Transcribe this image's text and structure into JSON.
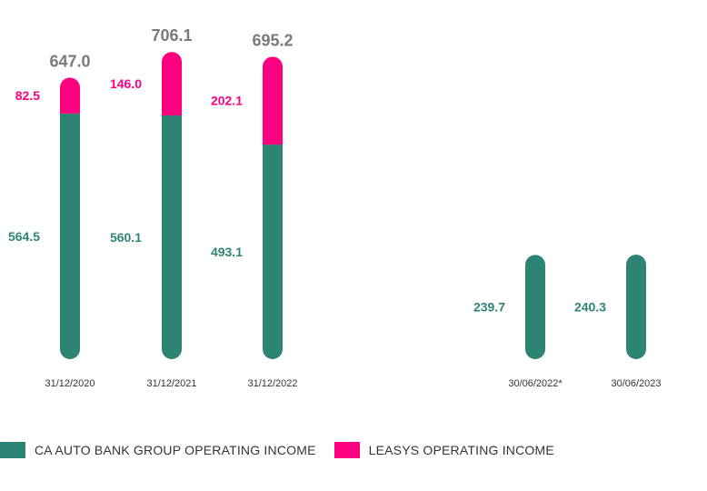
{
  "chart_data": {
    "type": "bar",
    "stacked": true,
    "categories": [
      "31/12/2020",
      "31/12/2021",
      "31/12/2022",
      "30/06/2022*",
      "30/06/2023"
    ],
    "series": [
      {
        "name": "CA AUTO BANK GROUP OPERATING INCOME",
        "color": "#2e8474",
        "values": [
          564.5,
          560.1,
          493.1,
          239.7,
          240.3
        ],
        "labels": [
          "564.5",
          "560.1",
          "493.1",
          "239.7",
          "240.3"
        ]
      },
      {
        "name": "LEASYS OPERATING INCOME",
        "color": "#ff0080",
        "values": [
          82.5,
          146.0,
          202.1,
          null,
          null
        ],
        "labels": [
          "82.5",
          "146.0",
          "202.1",
          "",
          ""
        ]
      }
    ],
    "totals": [
      647.0,
      706.1,
      695.2,
      null,
      null
    ],
    "total_labels": [
      "647.0",
      "706.1",
      "695.2",
      "",
      ""
    ],
    "total_color": "#7a7a7a",
    "legend_position": "bottom-left",
    "grid": false
  },
  "legend": {
    "items": [
      {
        "label": "CA AUTO BANK GROUP OPERATING INCOME",
        "color": "#2e8474"
      },
      {
        "label": "LEASYS OPERATING INCOME",
        "color": "#ff0080"
      }
    ]
  }
}
